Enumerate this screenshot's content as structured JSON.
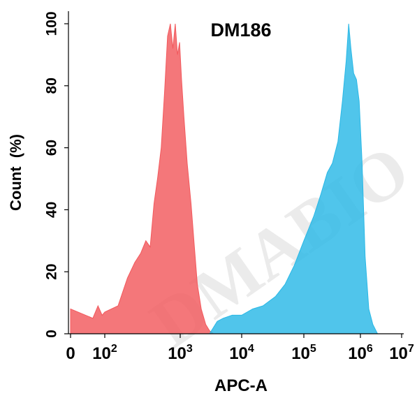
{
  "chart_data": {
    "type": "area",
    "title": "DM186",
    "xlabel": "APC-A",
    "ylabel": "Count  (%)",
    "x_scale": "log",
    "xlim": [
      0,
      10000000
    ],
    "ylim": [
      0,
      100
    ],
    "x_ticks": [
      {
        "base": "0",
        "exp": ""
      },
      {
        "base": "10",
        "exp": "2"
      },
      {
        "base": "10",
        "exp": "3"
      },
      {
        "base": "10",
        "exp": "4"
      },
      {
        "base": "10",
        "exp": "5"
      },
      {
        "base": "10",
        "exp": "6"
      },
      {
        "base": "10",
        "exp": "7"
      }
    ],
    "y_ticks": [
      "0",
      "20",
      "40",
      "60",
      "80",
      "100"
    ],
    "grid": false,
    "watermark": "DMABIO",
    "series": [
      {
        "color": "#f2595d",
        "points": [
          [
            0,
            8
          ],
          [
            20,
            5
          ],
          [
            40,
            9
          ],
          [
            70,
            6
          ],
          [
            100,
            7
          ],
          [
            150,
            9
          ],
          [
            200,
            18
          ],
          [
            250,
            23
          ],
          [
            300,
            26
          ],
          [
            350,
            30
          ],
          [
            400,
            28
          ],
          [
            450,
            42
          ],
          [
            500,
            50
          ],
          [
            560,
            60
          ],
          [
            620,
            78
          ],
          [
            680,
            96
          ],
          [
            740,
            100
          ],
          [
            800,
            92
          ],
          [
            860,
            100
          ],
          [
            920,
            90
          ],
          [
            980,
            94
          ],
          [
            1050,
            82
          ],
          [
            1150,
            70
          ],
          [
            1300,
            55
          ],
          [
            1500,
            42
          ],
          [
            1700,
            28
          ],
          [
            1900,
            16
          ],
          [
            2200,
            8
          ],
          [
            2600,
            3
          ],
          [
            3000,
            1
          ],
          [
            3500,
            0
          ]
        ]
      },
      {
        "color": "#29b8e6",
        "points": [
          [
            3000,
            0
          ],
          [
            4000,
            4
          ],
          [
            5000,
            5
          ],
          [
            7000,
            6
          ],
          [
            10000,
            6
          ],
          [
            15000,
            8
          ],
          [
            22000,
            9
          ],
          [
            35000,
            12
          ],
          [
            50000,
            16
          ],
          [
            70000,
            22
          ],
          [
            100000,
            30
          ],
          [
            150000,
            38
          ],
          [
            200000,
            45
          ],
          [
            260000,
            52
          ],
          [
            320000,
            55
          ],
          [
            400000,
            62
          ],
          [
            480000,
            75
          ],
          [
            560000,
            88
          ],
          [
            620000,
            100
          ],
          [
            680000,
            92
          ],
          [
            760000,
            84
          ],
          [
            850000,
            82
          ],
          [
            950000,
            75
          ],
          [
            1100000,
            55
          ],
          [
            1300000,
            25
          ],
          [
            1600000,
            8
          ],
          [
            2000000,
            3
          ],
          [
            2600000,
            0
          ]
        ]
      }
    ]
  }
}
